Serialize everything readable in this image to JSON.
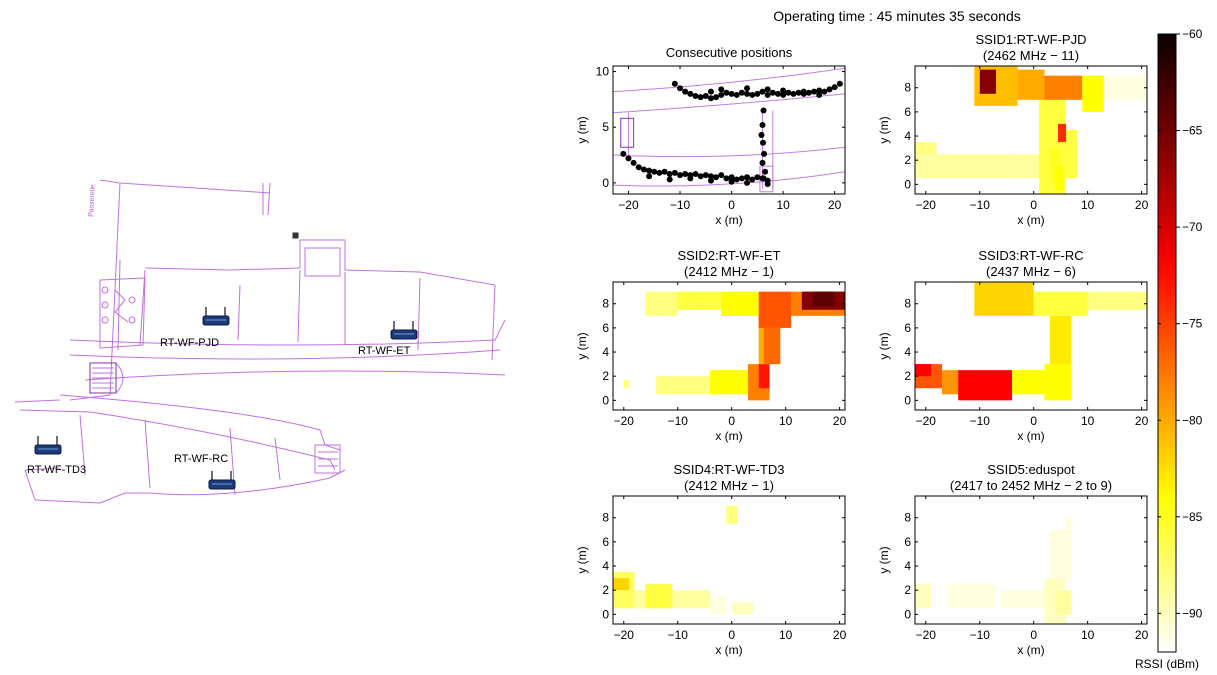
{
  "figure": {
    "title": "Operating time : 45 minutes 35 seconds",
    "colorbar": {
      "label": "RSSI (dBm)",
      "ticks": [
        -60,
        -65,
        -70,
        -75,
        -80,
        -85,
        -90
      ],
      "range": [
        -92,
        -60
      ],
      "colormap": "hot"
    }
  },
  "floorplan": {
    "labels": {
      "passerelle": "Passerelle",
      "pjd": "RT-WF-PJD",
      "et": "RT-WF-ET",
      "td3": "RT-WF-TD3",
      "rc": "RT-WF-RC"
    },
    "line_color": "#c070e0",
    "router_color": "#1e3a78"
  },
  "chart_data": [
    {
      "type": "scatter",
      "title": "Consecutive positions",
      "xlabel": "x (m)",
      "ylabel": "y (m)",
      "xlim": [
        -23,
        22
      ],
      "ylim": [
        -1,
        10.5
      ],
      "xticks": [
        -20,
        -10,
        0,
        10,
        20
      ],
      "yticks": [
        0,
        5,
        10
      ],
      "points": [
        [
          -11,
          8.9
        ],
        [
          -10,
          8.5
        ],
        [
          -9,
          8.2
        ],
        [
          -8,
          8.0
        ],
        [
          -7,
          7.8
        ],
        [
          -6,
          7.7
        ],
        [
          -5,
          7.8
        ],
        [
          -4,
          7.6
        ],
        [
          -3,
          7.7
        ],
        [
          -2,
          7.9
        ],
        [
          -1,
          8.1
        ],
        [
          0,
          8.0
        ],
        [
          1,
          7.9
        ],
        [
          2,
          8.1
        ],
        [
          3,
          8.0
        ],
        [
          4,
          7.9
        ],
        [
          5,
          8.0
        ],
        [
          6,
          8.2
        ],
        [
          7,
          7.9
        ],
        [
          8,
          8.1
        ],
        [
          9,
          8.0
        ],
        [
          10,
          7.9
        ],
        [
          11,
          8.1
        ],
        [
          12,
          8.0
        ],
        [
          13,
          8.1
        ],
        [
          14,
          8.2
        ],
        [
          15,
          8.1
        ],
        [
          16,
          8.2
        ],
        [
          17,
          8.3
        ],
        [
          18,
          8.2
        ],
        [
          19,
          8.4
        ],
        [
          20,
          8.6
        ],
        [
          21,
          8.9
        ],
        [
          -4,
          8.2
        ],
        [
          -2,
          8.4
        ],
        [
          3,
          8.5
        ],
        [
          7,
          8.4
        ],
        [
          10,
          8.3
        ],
        [
          14,
          8.0
        ],
        [
          17,
          7.9
        ],
        [
          6.2,
          6.5
        ],
        [
          6.0,
          5.2
        ],
        [
          5.8,
          4.3
        ],
        [
          6.1,
          3.6
        ],
        [
          6.3,
          2.6
        ],
        [
          6.0,
          1.8
        ],
        [
          6.5,
          1.0
        ],
        [
          6.2,
          0.4
        ],
        [
          -21,
          2.6
        ],
        [
          -20,
          2.2
        ],
        [
          -19,
          1.8
        ],
        [
          -18,
          1.4
        ],
        [
          -17,
          1.2
        ],
        [
          -16,
          1.1
        ],
        [
          -15,
          1.0
        ],
        [
          -14,
          0.9
        ],
        [
          -13,
          1.0
        ],
        [
          -12,
          0.8
        ],
        [
          -11,
          0.9
        ],
        [
          -10,
          0.7
        ],
        [
          -9,
          0.8
        ],
        [
          -8,
          0.7
        ],
        [
          -7,
          0.8
        ],
        [
          -6,
          0.6
        ],
        [
          -5,
          0.7
        ],
        [
          -4,
          0.6
        ],
        [
          -3,
          0.5
        ],
        [
          -2,
          0.7
        ],
        [
          -1,
          0.4
        ],
        [
          0,
          0.5
        ],
        [
          1,
          0.3
        ],
        [
          2,
          0.4
        ],
        [
          3,
          0.5
        ],
        [
          4,
          0.3
        ],
        [
          5,
          0.5
        ],
        [
          6,
          0.4
        ],
        [
          7,
          0.2
        ],
        [
          -16,
          0.6
        ],
        [
          -12,
          0.3
        ],
        [
          -8,
          0.4
        ],
        [
          -4,
          0.2
        ],
        [
          0,
          0.1
        ],
        [
          3,
          0.0
        ],
        [
          7,
          -0.1
        ]
      ]
    },
    {
      "type": "heatmap",
      "title": "SSID1:RT-WF-PJD",
      "subtitle": "(2462 MHz − 11)",
      "xlabel": "x (m)",
      "ylabel": "y (m)",
      "xlim": [
        -22,
        21
      ],
      "ylim": [
        -0.8,
        9.8
      ],
      "xticks": [
        -20,
        -10,
        0,
        10,
        20
      ],
      "yticks": [
        0,
        2,
        4,
        6,
        8
      ],
      "cells": [
        [
          -22,
          -2,
          0.5,
          2.5,
          -89
        ],
        [
          -2,
          2,
          0.5,
          2.5,
          -89
        ],
        [
          -22,
          -18,
          2.5,
          3.5,
          -88
        ],
        [
          1,
          6,
          -0.8,
          8.5,
          -86
        ],
        [
          3,
          5,
          0,
          3,
          -85
        ],
        [
          5,
          8,
          0.5,
          4.5,
          -86
        ],
        [
          -11,
          -3,
          6.5,
          9.8,
          -81
        ],
        [
          -10,
          -7,
          7.5,
          9.5,
          -66
        ],
        [
          -3,
          2,
          7,
          9.5,
          -80
        ],
        [
          2,
          9,
          7,
          9,
          -78
        ],
        [
          9,
          13,
          6,
          9,
          -84
        ],
        [
          13,
          21,
          7,
          9,
          -91
        ],
        [
          4.5,
          6,
          3.5,
          5,
          -74
        ],
        [
          4,
          5.5,
          -0.5,
          1.5,
          -84
        ]
      ]
    },
    {
      "type": "heatmap",
      "title": "SSID2:RT-WF-ET",
      "subtitle": "(2412 MHz − 1)",
      "xlabel": "x (m)",
      "ylabel": "y (m)",
      "xlim": [
        -22,
        21
      ],
      "ylim": [
        -0.8,
        9.8
      ],
      "xticks": [
        -20,
        -10,
        0,
        10,
        20
      ],
      "yticks": [
        0,
        2,
        4,
        6,
        8
      ],
      "cells": [
        [
          -20,
          -19,
          1,
          1.7,
          -88
        ],
        [
          -14,
          -4,
          0.5,
          2,
          -88
        ],
        [
          -4,
          3,
          0.5,
          2.5,
          -84
        ],
        [
          3,
          7,
          0,
          3,
          -78
        ],
        [
          5,
          7,
          1,
          3,
          -73
        ],
        [
          5,
          9,
          3,
          7,
          -80
        ],
        [
          6,
          9,
          3,
          6,
          -77
        ],
        [
          -16,
          -10,
          7,
          9,
          -88
        ],
        [
          -10,
          -2,
          7.5,
          9,
          -86
        ],
        [
          -2,
          5,
          7,
          9,
          -84
        ],
        [
          5,
          11,
          6,
          9,
          -76
        ],
        [
          11,
          21,
          7,
          9,
          -78
        ],
        [
          13,
          21,
          7.5,
          9,
          -66
        ],
        [
          15,
          19,
          7.8,
          9,
          -64
        ]
      ]
    },
    {
      "type": "heatmap",
      "title": "SSID3:RT-WF-RC",
      "subtitle": "(2437 MHz − 6)",
      "xlabel": "x (m)",
      "ylabel": "y (m)",
      "xlim": [
        -22,
        21
      ],
      "ylim": [
        -0.8,
        9.8
      ],
      "xticks": [
        -20,
        -10,
        0,
        10,
        20
      ],
      "yticks": [
        0,
        2,
        4,
        6,
        8
      ],
      "cells": [
        [
          -22,
          -17,
          1,
          3,
          -76
        ],
        [
          -17,
          -14,
          0.5,
          2.5,
          -79
        ],
        [
          -14,
          -4,
          0,
          2.5,
          -72
        ],
        [
          -4,
          2,
          0.5,
          2.5,
          -84
        ],
        [
          2,
          7,
          0,
          3,
          -84
        ],
        [
          3,
          7,
          3,
          7,
          -83
        ],
        [
          -11,
          0,
          7,
          9.8,
          -82
        ],
        [
          0,
          10,
          7,
          9,
          -86
        ],
        [
          10,
          21,
          7.5,
          9,
          -88
        ],
        [
          -22,
          -19,
          2,
          3,
          -72
        ]
      ]
    },
    {
      "type": "heatmap",
      "title": "SSID4:RT-WF-TD3",
      "subtitle": "(2412 MHz − 1)",
      "xlabel": "x (m)",
      "ylabel": "y (m)",
      "xlim": [
        -22,
        21
      ],
      "ylim": [
        -0.8,
        9.8
      ],
      "xticks": [
        -20,
        -10,
        0,
        10,
        20
      ],
      "yticks": [
        0,
        2,
        4,
        6,
        8
      ],
      "cells": [
        [
          -22,
          -18,
          0.5,
          3.5,
          -87
        ],
        [
          -22,
          -19,
          2,
          3,
          -82
        ],
        [
          -18,
          -4,
          0.5,
          2,
          -89
        ],
        [
          -16,
          -11,
          0.5,
          2.5,
          -86
        ],
        [
          -4,
          -1,
          0,
          1.5,
          -91
        ],
        [
          0,
          4,
          0,
          1,
          -90
        ],
        [
          -1,
          1,
          7.5,
          9,
          -88
        ]
      ]
    },
    {
      "type": "heatmap",
      "title": "SSID5:eduspot",
      "subtitle": "(2417 to 2452 MHz − 2 to 9)",
      "xlabel": "x (m)",
      "ylabel": "y (m)",
      "xlim": [
        -22,
        21
      ],
      "ylim": [
        -0.8,
        9.8
      ],
      "xticks": [
        -20,
        -10,
        0,
        10,
        20
      ],
      "yticks": [
        0,
        2,
        4,
        6,
        8
      ],
      "cells": [
        [
          -22,
          -19,
          0.5,
          2.5,
          -90
        ],
        [
          -16,
          -7,
          0.5,
          2.5,
          -91
        ],
        [
          -6,
          2,
          0.5,
          2,
          -91
        ],
        [
          2,
          6,
          -0.8,
          3,
          -90
        ],
        [
          4,
          7,
          0,
          2,
          -89
        ],
        [
          3,
          7,
          3,
          8,
          -91
        ],
        [
          -12,
          -3,
          7,
          9,
          -92
        ],
        [
          2,
          6,
          7,
          9.8,
          -92
        ]
      ]
    }
  ]
}
